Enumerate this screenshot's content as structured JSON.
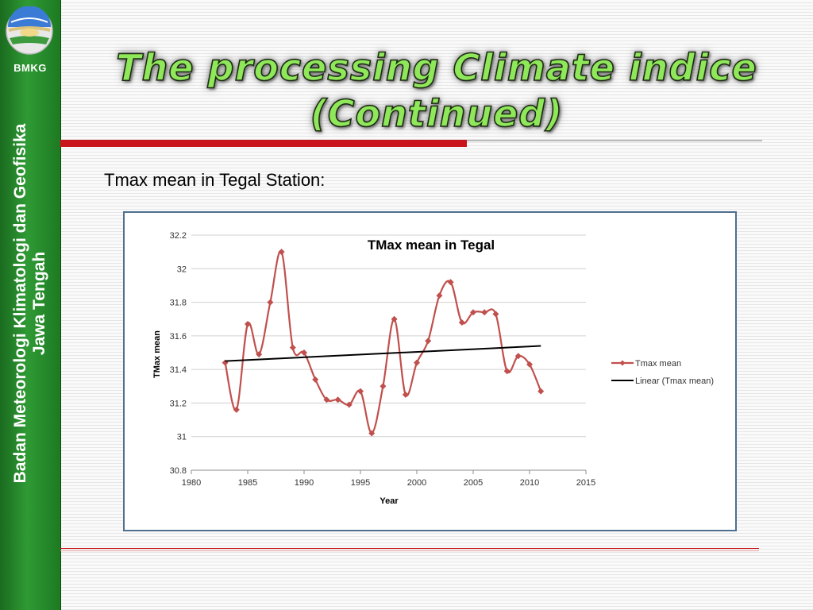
{
  "sidebar": {
    "logo_text": "BMKG",
    "vertical_line1": "Badan Meteorologi Klimatologi dan Geofisika",
    "vertical_line2": "Jawa Tengah",
    "color": "#2f9a34"
  },
  "slide": {
    "title_line1": "The processing Climate indice",
    "title_line2": "(Continued)",
    "subtitle": "Tmax mean in Tegal Station:"
  },
  "chart_data": {
    "type": "line",
    "title": "TMax mean in Tegal",
    "xlabel": "Year",
    "ylabel": "TMax mean",
    "xlim": [
      1980,
      2015
    ],
    "ylim": [
      30.8,
      32.2
    ],
    "x_ticks": [
      1980,
      1985,
      1990,
      1995,
      2000,
      2005,
      2010,
      2015
    ],
    "y_ticks": [
      30.8,
      31,
      31.2,
      31.4,
      31.6,
      31.8,
      32,
      32.2
    ],
    "grid": "horizontal",
    "legend_position": "right",
    "series": [
      {
        "name": "Tmax mean",
        "color": "#c0504d",
        "marker": "diamond",
        "smooth": true,
        "x": [
          1983,
          1984,
          1985,
          1986,
          1987,
          1988,
          1989,
          1990,
          1991,
          1992,
          1993,
          1994,
          1995,
          1996,
          1997,
          1998,
          1999,
          2000,
          2001,
          2002,
          2003,
          2004,
          2005,
          2006,
          2007,
          2008,
          2009,
          2010,
          2011
        ],
        "values": [
          31.44,
          31.16,
          31.67,
          31.49,
          31.8,
          32.1,
          31.53,
          31.5,
          31.34,
          31.22,
          31.22,
          31.19,
          31.27,
          31.02,
          31.3,
          31.7,
          31.25,
          31.44,
          31.57,
          31.84,
          31.92,
          31.68,
          31.74,
          31.74,
          31.73,
          31.39,
          31.48,
          31.43,
          31.27
        ]
      },
      {
        "name": "Linear (Tmax mean)",
        "color": "#000000",
        "type": "trendline",
        "x": [
          1983,
          2011
        ],
        "values": [
          31.45,
          31.54
        ]
      }
    ]
  }
}
